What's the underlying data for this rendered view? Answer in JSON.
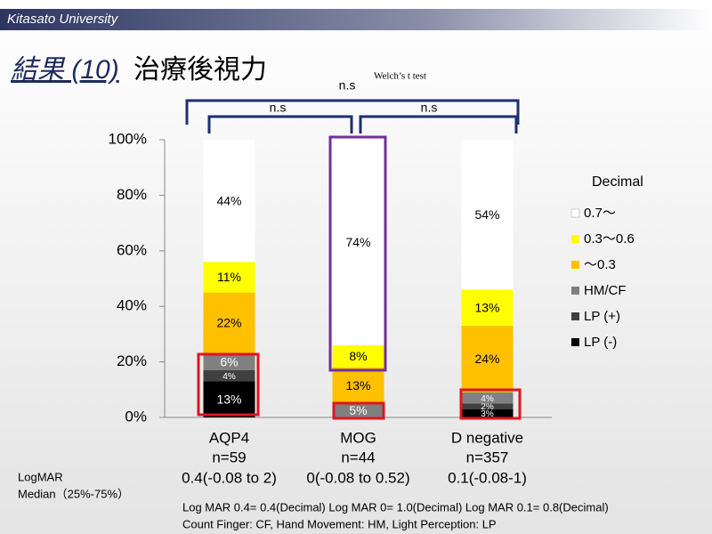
{
  "header": "Kitasato University",
  "title_parts": [
    "結果 (10)",
    "治療後視力"
  ],
  "chart_data": {
    "type": "stacked_bar",
    "categories": [
      "AQP4",
      "MOG",
      "D negative"
    ],
    "n_labels": [
      "n=59",
      "n=44",
      "n=357"
    ],
    "median_labels": [
      "0.4(-0.08 to 2)",
      "0(-0.08 to 0.52)",
      "0.1(-0.08-1)"
    ],
    "ylim": [
      0,
      100
    ],
    "yticks": [
      {
        "value": 0,
        "label": "0%"
      },
      {
        "value": 20,
        "label": "20%"
      },
      {
        "value": 40,
        "label": "40%"
      },
      {
        "value": 60,
        "label": "60%"
      },
      {
        "value": 80,
        "label": "80%"
      },
      {
        "value": 100,
        "label": "100%"
      }
    ],
    "legend_title": "Decimal",
    "legend_position": "right",
    "series": [
      {
        "name": "LP (-)",
        "color": "#000000",
        "values": [
          13,
          0,
          3
        ],
        "value_labels": [
          "13%",
          null,
          "3%"
        ]
      },
      {
        "name": "LP (+)",
        "color": "#404040",
        "values": [
          4,
          0,
          2
        ],
        "value_labels": [
          "4%",
          null,
          "2%"
        ]
      },
      {
        "name": "HM/CF",
        "color": "#808080",
        "values": [
          6,
          5,
          4
        ],
        "value_labels": [
          "6%",
          "5%",
          "4%"
        ]
      },
      {
        "name": "〜0.3",
        "color": "#ffc000",
        "values": [
          22,
          13,
          24
        ],
        "value_labels": [
          "22%",
          "13%",
          "24%"
        ]
      },
      {
        "name": "0.3〜0.6",
        "color": "#ffff00",
        "values": [
          11,
          8,
          13
        ],
        "value_labels": [
          "11%",
          "8%",
          "13%"
        ]
      },
      {
        "name": "0.7〜",
        "color": "#ffffff",
        "values": [
          44,
          74,
          54
        ],
        "value_labels": [
          "44%",
          "74%",
          "54%"
        ]
      }
    ],
    "annotations": {
      "test": "Welch’s t test",
      "ns_all": "n.s",
      "ns_left": "n.s",
      "ns_right": "n.s"
    }
  },
  "logmar_label": "LogMAR",
  "median_label": "Median（25%-75%）",
  "footnotes": [
    "Log MAR 0.4= 0.4(Decimal) Log MAR 0= 1.0(Decimal)   Log MAR 0.1= 0.8(Decimal)",
    "Count Finger: CF, Hand Movement: HM, Light Perception: LP"
  ]
}
